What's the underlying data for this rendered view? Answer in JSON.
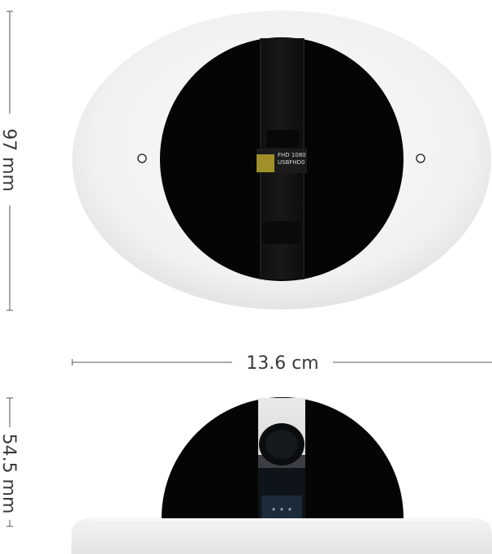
{
  "dimensions": {
    "height_top": "97 mm",
    "width": "13.6 cm",
    "height_bottom": "54.5 mm"
  },
  "device_label": {
    "line1": "FHD 1080",
    "line2": "USBFHD0"
  },
  "colors": {
    "body_white": "#f2f2f2",
    "face_black": "#050505",
    "line_gray": "#555555",
    "label_yellow": "#b9a52d"
  }
}
